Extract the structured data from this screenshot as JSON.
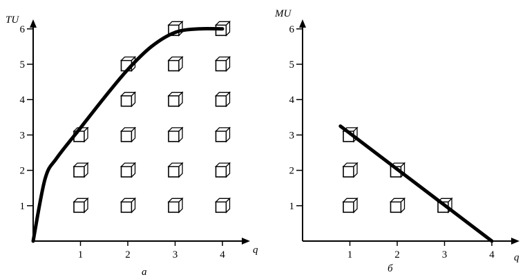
{
  "chart_data": [
    {
      "type": "line",
      "panel_label": "а",
      "xlabel": "q",
      "ylabel": "TU",
      "xticks": [
        "1",
        "2",
        "3",
        "4"
      ],
      "yticks": [
        "1",
        "2",
        "3",
        "4",
        "5",
        "6"
      ],
      "xlim": [
        0,
        4.75
      ],
      "ylim": [
        0,
        6.2
      ],
      "grid": false,
      "series": [
        {
          "values_x": [
            0,
            0.25,
            0.5,
            1,
            1.5,
            2,
            2.5,
            3,
            3.5,
            4
          ],
          "values_y": [
            0,
            1.75,
            2.35,
            3.2,
            4.05,
            4.85,
            5.5,
            5.9,
            6.0,
            6.0
          ]
        }
      ],
      "cubes": [
        {
          "q": 1,
          "count": 3
        },
        {
          "q": 2,
          "count": 5
        },
        {
          "q": 3,
          "count": 6
        },
        {
          "q": 4,
          "count": 6
        }
      ]
    },
    {
      "type": "line",
      "panel_label": "б",
      "xlabel": "q",
      "ylabel": "MU",
      "xticks": [
        "1",
        "2",
        "3",
        "4"
      ],
      "yticks": [
        "1",
        "2",
        "3",
        "4",
        "5",
        "6"
      ],
      "xlim": [
        0,
        4.75
      ],
      "ylim": [
        0,
        6.2
      ],
      "grid": false,
      "series": [
        {
          "values_x": [
            0.8,
            4
          ],
          "values_y": [
            3.25,
            0
          ]
        }
      ],
      "cubes": [
        {
          "q": 1,
          "count": 3
        },
        {
          "q": 2,
          "count": 2
        },
        {
          "q": 3,
          "count": 1
        }
      ]
    }
  ]
}
